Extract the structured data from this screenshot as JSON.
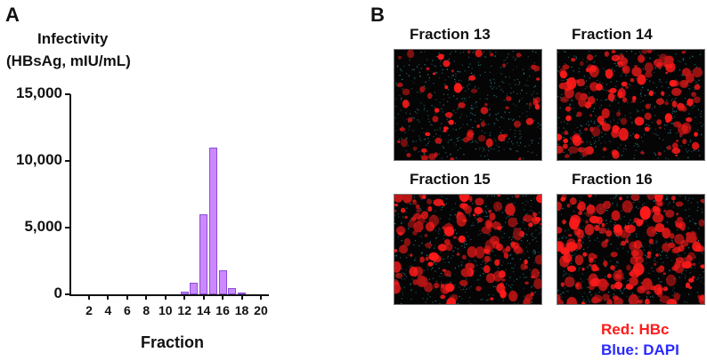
{
  "panel_a": {
    "letter": "A",
    "ylabel_line1": "Infectivity",
    "ylabel_line2": "(HBsAg, mIU/mL)",
    "yticks": [
      "15,000",
      "10,000",
      "5,000",
      "0"
    ],
    "xticks": [
      "2",
      "4",
      "6",
      "8",
      "10",
      "12",
      "14",
      "16",
      "18",
      "20"
    ],
    "xlabel": "Fraction"
  },
  "panel_b": {
    "letter": "B",
    "images": [
      {
        "title": "Fraction 13",
        "density": 0.25
      },
      {
        "title": "Fraction 14",
        "density": 0.55
      },
      {
        "title": "Fraction 15",
        "density": 0.6
      },
      {
        "title": "Fraction 16",
        "density": 0.75
      }
    ],
    "legend": {
      "red_label": "Red: HBc",
      "blue_label": "Blue: DAPI",
      "red_color": "#ff1a1a",
      "blue_color": "#2a2aff"
    }
  },
  "colors": {
    "bar_fill": "#cc88ff",
    "bar_border": "#8a4fd6"
  },
  "chart_data": {
    "type": "bar",
    "title": "",
    "xlabel": "Fraction",
    "ylabel": "Infectivity (HBsAg, mIU/mL)",
    "categories": [
      1,
      2,
      3,
      4,
      5,
      6,
      7,
      8,
      9,
      10,
      11,
      12,
      13,
      14,
      15,
      16,
      17,
      18,
      19,
      20
    ],
    "values": [
      0,
      0,
      0,
      0,
      0,
      0,
      0,
      0,
      0,
      0,
      0,
      200,
      900,
      6000,
      11000,
      1800,
      500,
      80,
      0,
      0
    ],
    "ylim": [
      0,
      15000
    ],
    "yticks": [
      0,
      5000,
      10000,
      15000
    ],
    "xticks": [
      2,
      4,
      6,
      8,
      10,
      12,
      14,
      16,
      18,
      20
    ],
    "grid": false,
    "legend": null
  }
}
